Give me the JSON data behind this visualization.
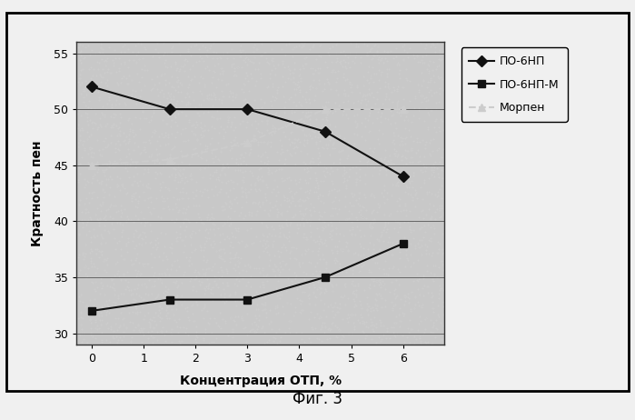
{
  "series": [
    {
      "label": "ПО-6НП",
      "x": [
        0,
        1.5,
        3,
        4.5,
        6
      ],
      "y": [
        52,
        50,
        50,
        48,
        44
      ],
      "color": "#111111",
      "marker": "D",
      "linestyle": "-",
      "markersize": 6,
      "linewidth": 1.5
    },
    {
      "label": "ПО-6НП-М",
      "x": [
        0,
        1.5,
        3,
        4.5,
        6
      ],
      "y": [
        32,
        33,
        33,
        35,
        38
      ],
      "color": "#111111",
      "marker": "s",
      "linestyle": "-",
      "markersize": 6,
      "linewidth": 1.5
    },
    {
      "label": "Морпен",
      "x": [
        0,
        1.5,
        3,
        4.5,
        6
      ],
      "y": [
        45,
        45.5,
        47,
        50,
        50
      ],
      "color": "#cccccc",
      "marker": "^",
      "linestyle": "--",
      "markersize": 6,
      "linewidth": 1.5
    }
  ],
  "xlabel": "Концентрация ОТП, %",
  "ylabel": "Кратность пен",
  "xlim": [
    -0.3,
    6.8
  ],
  "ylim": [
    29,
    56
  ],
  "xticks": [
    0,
    1,
    2,
    3,
    4,
    5,
    6
  ],
  "yticks": [
    30,
    35,
    40,
    45,
    50,
    55
  ],
  "fig_caption": "Фиг. 3",
  "outer_bg": "#f0f0f0",
  "plot_bg_color": "#c8c8c8",
  "legend_bg": "#f0f0f0",
  "grid_color": "#555555",
  "grid_linestyle": "-",
  "grid_linewidth": 0.6
}
